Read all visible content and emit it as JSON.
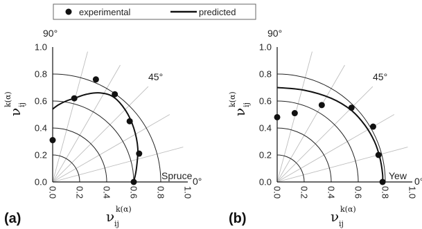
{
  "legend": {
    "experimental_label": "experimental",
    "predicted_label": "predicted"
  },
  "axis_symbol": {
    "symbol": "ν",
    "subscript": "ij",
    "superscript": "k(α)"
  },
  "colors": {
    "foreground": "#111111",
    "grid": "#bdbdbd",
    "ring": "#222222"
  },
  "chart_data": [
    {
      "type": "scatter",
      "coordinate_system": "polar-quadrant",
      "panel_label": "(a)",
      "species_label": "Spruce",
      "angle_labels": [
        "90°",
        "45°",
        "0°"
      ],
      "radial_ticks": [
        "0.0",
        "0.2",
        "0.4",
        "0.6",
        "0.8",
        "1.0"
      ],
      "x_ticks": [
        "0.0",
        "0.2",
        "0.4",
        "0.6",
        "0.8",
        "1.0"
      ],
      "rlim": [
        0,
        1
      ],
      "grid_angles_deg": [
        15,
        30,
        45,
        60,
        75
      ],
      "grid": true,
      "series": [
        {
          "name": "experimental",
          "marker": "circle",
          "x": [
            0.0,
            0.16,
            0.32,
            0.46,
            0.57,
            0.64,
            0.6
          ],
          "y": [
            0.31,
            0.62,
            0.76,
            0.65,
            0.45,
            0.21,
            0.0
          ]
        },
        {
          "name": "predicted",
          "line": "solid",
          "x": [
            0.0,
            0.04,
            0.1,
            0.16,
            0.25,
            0.35,
            0.45,
            0.54,
            0.6,
            0.63,
            0.62,
            0.6
          ],
          "y": [
            0.54,
            0.57,
            0.6,
            0.62,
            0.65,
            0.66,
            0.63,
            0.53,
            0.4,
            0.25,
            0.1,
            0.0
          ]
        }
      ]
    },
    {
      "type": "scatter",
      "coordinate_system": "polar-quadrant",
      "panel_label": "(b)",
      "species_label": "Yew",
      "angle_labels": [
        "90°",
        "45°",
        "0°"
      ],
      "radial_ticks": [
        "0.0",
        "0.2",
        "0.4",
        "0.6",
        "0.8",
        "1.0"
      ],
      "x_ticks": [
        "0.0",
        "0.2",
        "0.4",
        "0.6",
        "0.8",
        "1.0"
      ],
      "rlim": [
        0,
        1
      ],
      "grid_angles_deg": [
        15,
        30,
        45,
        60,
        75
      ],
      "grid": true,
      "series": [
        {
          "name": "experimental",
          "marker": "circle",
          "x": [
            0.0,
            0.13,
            0.33,
            0.55,
            0.71,
            0.75,
            0.78
          ],
          "y": [
            0.48,
            0.51,
            0.57,
            0.55,
            0.41,
            0.2,
            0.0
          ]
        },
        {
          "name": "predicted",
          "line": "solid",
          "x": [
            0.0,
            0.2,
            0.4,
            0.55,
            0.65,
            0.72,
            0.76,
            0.78,
            0.78
          ],
          "y": [
            0.7,
            0.68,
            0.62,
            0.53,
            0.42,
            0.3,
            0.18,
            0.06,
            0.0
          ]
        }
      ]
    }
  ]
}
